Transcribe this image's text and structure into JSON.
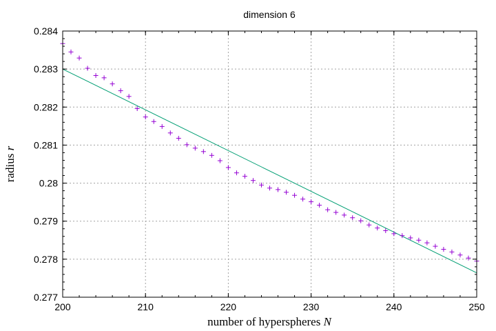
{
  "chart_data": {
    "type": "scatter",
    "title": "dimension 6",
    "xlabel": "number of hyperspheres",
    "xlabel_var": "N",
    "ylabel": "radius",
    "ylabel_var": "r",
    "xlim": [
      200,
      250
    ],
    "ylim": [
      0.277,
      0.284
    ],
    "xticks": [
      "200",
      "210",
      "220",
      "230",
      "240",
      "250"
    ],
    "yticks": [
      "0.277",
      "0.278",
      "0.279",
      "0.28",
      "0.281",
      "0.282",
      "0.283",
      "0.284"
    ],
    "grid": true,
    "series": [
      {
        "kind": "points",
        "marker": "+",
        "color": "#9400d3",
        "x": [
          200,
          201,
          202,
          203,
          204,
          205,
          206,
          207,
          208,
          209,
          210,
          211,
          212,
          213,
          214,
          215,
          216,
          217,
          218,
          219,
          220,
          221,
          222,
          223,
          224,
          225,
          226,
          227,
          228,
          229,
          230,
          231,
          232,
          233,
          234,
          235,
          236,
          237,
          238,
          239,
          240,
          241,
          242,
          243,
          244,
          245,
          246,
          247,
          248,
          249,
          250
        ],
        "y": [
          0.28367,
          0.28345,
          0.28329,
          0.28302,
          0.28283,
          0.28277,
          0.28261,
          0.28243,
          0.28228,
          0.28196,
          0.28174,
          0.28162,
          0.28149,
          0.28132,
          0.28118,
          0.28101,
          0.28092,
          0.28083,
          0.28073,
          0.28059,
          0.28041,
          0.28027,
          0.28018,
          0.28007,
          0.27995,
          0.27987,
          0.27983,
          0.27976,
          0.27968,
          0.27958,
          0.27951,
          0.27942,
          0.2793,
          0.27923,
          0.27916,
          0.27909,
          0.27901,
          0.2789,
          0.27882,
          0.27875,
          0.27867,
          0.27862,
          0.27856,
          0.2785,
          0.27843,
          0.27834,
          0.27826,
          0.27819,
          0.27811,
          0.27803,
          0.27795
        ]
      },
      {
        "kind": "line",
        "color": "#009e73",
        "x": [
          200,
          250
        ],
        "y": [
          0.283,
          0.27764
        ]
      }
    ]
  }
}
